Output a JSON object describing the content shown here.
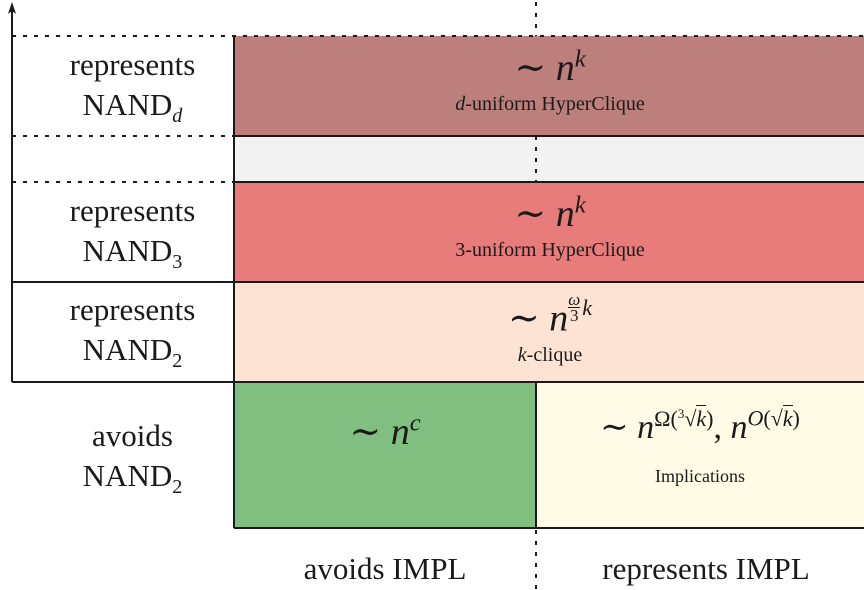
{
  "rows": {
    "nand_d": {
      "line1": "represents",
      "line2": "NAND",
      "sub": "d"
    },
    "nand_3": {
      "line1": "represents",
      "line2": "NAND",
      "sub": "3"
    },
    "nand_2": {
      "line1": "represents",
      "line2": "NAND",
      "sub": "2"
    },
    "avoid_nand2": {
      "line1": "avoids",
      "line2": "NAND",
      "sub": "2"
    }
  },
  "columns": {
    "left": "avoids IMPL",
    "right": "represents IMPL"
  },
  "cells": {
    "hyperclique_d": {
      "formula_prefix": "∼ ",
      "base": "n",
      "exponent": "k",
      "name_var": "d",
      "name_rest": "-uniform HyperClique"
    },
    "hyperclique_3": {
      "formula_prefix": "∼ ",
      "base": "n",
      "exponent": "k",
      "name_rest": "3-uniform HyperClique"
    },
    "kclique": {
      "formula_prefix": "∼ ",
      "base": "n",
      "exp_num": "ω",
      "exp_den": "3",
      "exp_var": "k",
      "name_var": "k",
      "name_rest": "-clique"
    },
    "poly": {
      "formula_prefix": "∼ ",
      "base": "n",
      "exponent": "c"
    },
    "implications": {
      "formula": "∼ n^{Ω(∛k)}, n^{O(√k)}",
      "name": "Implications"
    }
  },
  "colors": {
    "hyperclique_d": "#bd7f7c",
    "gap": "#f2f2f2",
    "hyperclique_3": "#e77c7a",
    "kclique": "#fde3d3",
    "poly": "#80bf7f",
    "implications": "#fffbe6"
  }
}
